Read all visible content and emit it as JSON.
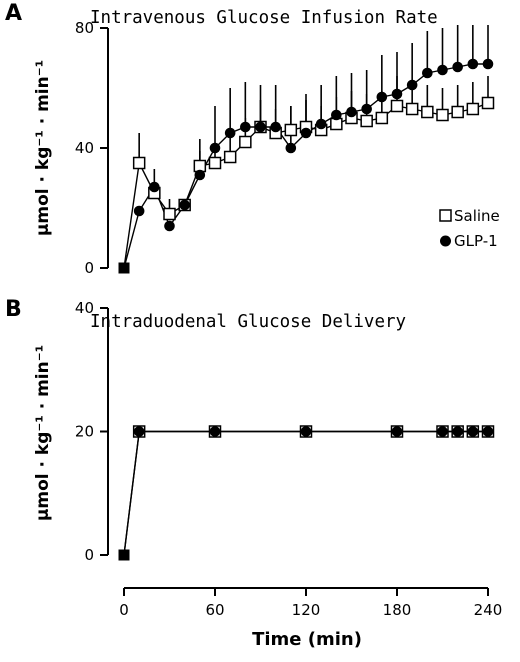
{
  "chart_data": [
    {
      "panel": "A",
      "type": "line",
      "title": "Intravenous Glucose Infusion Rate",
      "xlabel": "",
      "ylabel": "µmol · kg⁻¹ · min⁻¹",
      "xlim": [
        0,
        240
      ],
      "ylim": [
        0,
        80
      ],
      "yticks": [
        0,
        40,
        80
      ],
      "legend": {
        "placement": "right-middle",
        "entries": [
          "Saline",
          "GLP-1"
        ]
      },
      "series": [
        {
          "name": "Saline",
          "marker": "open-square",
          "x": [
            0,
            10,
            20,
            30,
            40,
            50,
            60,
            70,
            80,
            90,
            100,
            110,
            120,
            130,
            140,
            150,
            160,
            170,
            180,
            190,
            200,
            210,
            220,
            230,
            240
          ],
          "y": [
            0,
            35,
            25,
            18,
            21,
            34,
            35,
            37,
            42,
            47,
            45,
            46,
            47,
            46,
            48,
            50,
            49,
            50,
            54,
            53,
            52,
            51,
            52,
            53,
            55
          ],
          "error": [
            0,
            10,
            8,
            5,
            0,
            5,
            6,
            7,
            8,
            9,
            8,
            8,
            9,
            8,
            9,
            9,
            9,
            9,
            10,
            9,
            9,
            9,
            9,
            9,
            9
          ]
        },
        {
          "name": "GLP-1",
          "marker": "filled-circle",
          "x": [
            0,
            10,
            20,
            30,
            40,
            50,
            60,
            70,
            80,
            90,
            100,
            110,
            120,
            130,
            140,
            150,
            160,
            170,
            180,
            190,
            200,
            210,
            220,
            230,
            240
          ],
          "y": [
            0,
            19,
            27,
            14,
            21,
            31,
            40,
            45,
            47,
            47,
            47,
            40,
            45,
            48,
            51,
            52,
            53,
            57,
            58,
            61,
            65,
            66,
            67,
            68,
            68
          ],
          "error": [
            0,
            0,
            0,
            0,
            0,
            12,
            14,
            15,
            15,
            14,
            14,
            14,
            13,
            13,
            13,
            13,
            13,
            14,
            14,
            14,
            14,
            14,
            14,
            13,
            13
          ]
        }
      ]
    },
    {
      "panel": "B",
      "type": "line",
      "title": "Intraduodenal Glucose Delivery",
      "xlabel": "Time (min)",
      "ylabel": "µmol · kg⁻¹ · min⁻¹",
      "xlim": [
        0,
        240
      ],
      "ylim": [
        0,
        40
      ],
      "xticks": [
        0,
        60,
        120,
        180,
        240
      ],
      "yticks": [
        0,
        20,
        40
      ],
      "series": [
        {
          "name": "Saline",
          "marker": "open-square",
          "x": [
            0,
            10,
            60,
            120,
            180,
            210,
            220,
            230,
            240
          ],
          "y": [
            0,
            20,
            20,
            20,
            20,
            20,
            20,
            20,
            20
          ]
        },
        {
          "name": "GLP-1",
          "marker": "filled-circle",
          "x": [
            0,
            10,
            60,
            120,
            180,
            210,
            220,
            230,
            240
          ],
          "y": [
            0,
            20,
            20,
            20,
            20,
            20,
            20,
            20,
            20
          ]
        }
      ]
    }
  ]
}
